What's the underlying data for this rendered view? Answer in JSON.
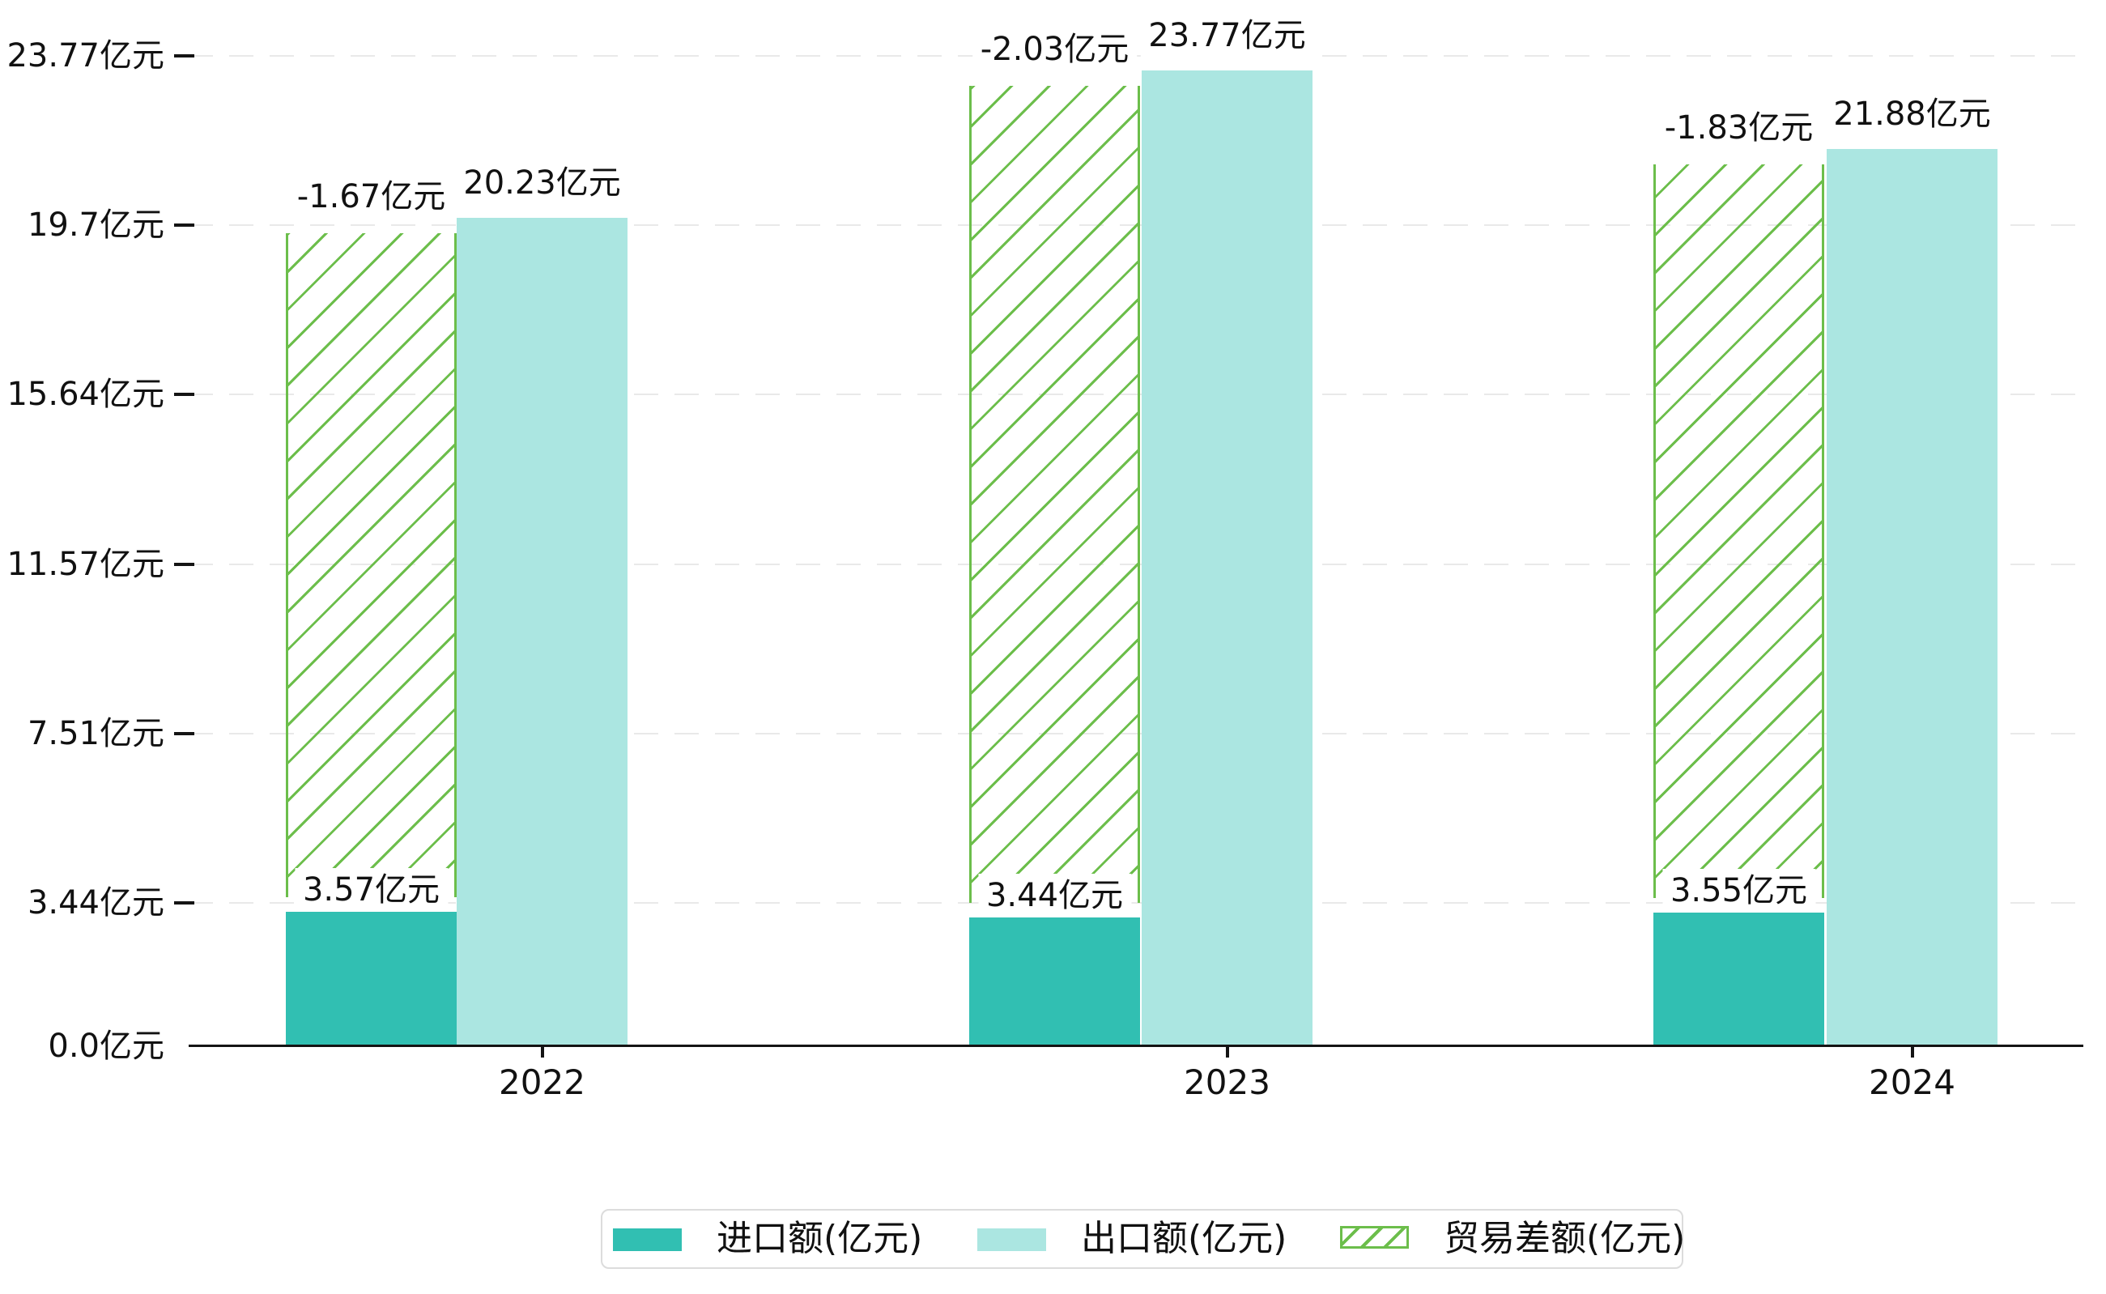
{
  "chart_data": {
    "type": "bar",
    "title": "",
    "unit": "亿元",
    "categories": [
      "2022",
      "2023",
      "2024"
    ],
    "series": [
      {
        "name": "进口额(亿元)",
        "values": [
          3.57,
          3.44,
          3.55
        ],
        "color": "#31bfb2",
        "style": "solid"
      },
      {
        "name": "出口额(亿元)",
        "values": [
          20.23,
          23.77,
          21.88
        ],
        "color": "#abe6e1",
        "style": "solid"
      },
      {
        "name": "贸易差额(亿元)",
        "values": [
          -1.67,
          -2.03,
          -1.83
        ],
        "color": "#6cbe4b",
        "style": "hatched"
      }
    ],
    "value_labels": {
      "import": [
        "3.57亿元",
        "3.44亿元",
        "3.55亿元"
      ],
      "export": [
        "20.23亿元",
        "23.77亿元",
        "21.88亿元"
      ],
      "balance": [
        "-1.67亿元",
        "-2.03亿元",
        "-1.83亿元"
      ]
    },
    "y_axis": {
      "ticks": [
        {
          "label": "0.0亿元",
          "value": 0
        },
        {
          "label": "3.44亿元",
          "value": 3.44
        },
        {
          "label": "7.51亿元",
          "value": 7.51
        },
        {
          "label": "11.57亿元",
          "value": 11.57
        },
        {
          "label": "15.64亿元",
          "value": 15.64
        },
        {
          "label": "19.7亿元",
          "value": 19.7
        },
        {
          "label": "23.77亿元",
          "value": 23.77
        }
      ],
      "range": [
        0,
        25.1
      ]
    },
    "x_axis": {
      "labels": [
        "2022",
        "2023",
        "2024"
      ]
    },
    "legend": {
      "position": "bottom",
      "items": [
        "进口额(亿元)",
        "出口额(亿元)",
        "贸易差额(亿元)"
      ]
    },
    "grid": true,
    "colors": {
      "axis": "#141414",
      "gridline": "#e9e9e9",
      "text": "#111111",
      "background": "#ffffff"
    }
  }
}
